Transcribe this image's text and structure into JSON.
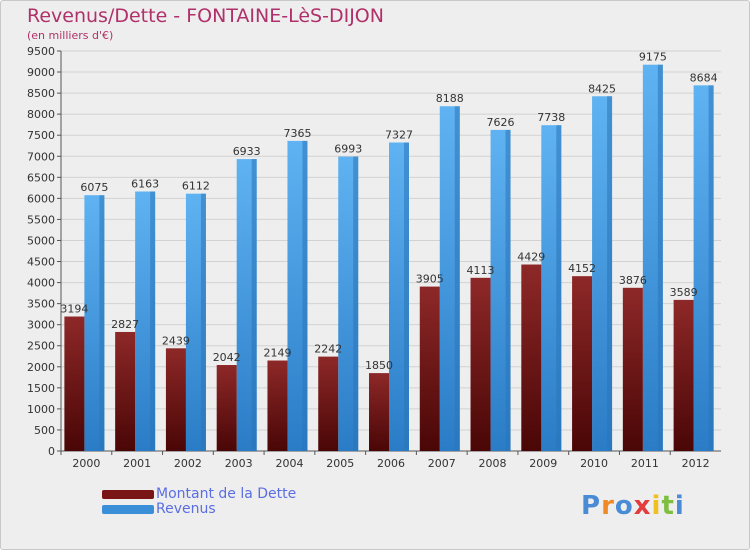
{
  "header": {
    "title": "Revenus/Dette - FONTAINE-LèS-DIJON",
    "subtitle": "(en milliers d'€)"
  },
  "legend": {
    "items": [
      {
        "label": "Montant de la Dette",
        "color": "#7a1515"
      },
      {
        "label": "Revenus",
        "color": "#3a8fd8"
      }
    ]
  },
  "logo": {
    "text": "Proxiti",
    "colors": [
      "#4a8bd6",
      "#f08a24",
      "#4a8bd6",
      "#e23c3c",
      "#f0c020",
      "#7fbf3f",
      "#4a8bd6"
    ]
  },
  "chart_data": {
    "type": "bar",
    "categories": [
      "2000",
      "2001",
      "2002",
      "2003",
      "2004",
      "2005",
      "2006",
      "2007",
      "2008",
      "2009",
      "2010",
      "2011",
      "2012"
    ],
    "series": [
      {
        "name": "Montant de la Dette",
        "color": "#7a1515",
        "values": [
          3194,
          2827,
          2439,
          2042,
          2149,
          2242,
          1850,
          3905,
          4113,
          4429,
          4152,
          3876,
          3589
        ]
      },
      {
        "name": "Revenus",
        "color": "#3a8fd8",
        "values": [
          6075,
          6163,
          6112,
          6933,
          7365,
          6993,
          7327,
          8188,
          7626,
          7738,
          8425,
          9175,
          8684
        ]
      }
    ],
    "yticks": [
      0,
      500,
      1000,
      1500,
      2000,
      2500,
      3000,
      3500,
      4000,
      4500,
      5000,
      5500,
      6000,
      6500,
      7000,
      7500,
      8000,
      8500,
      9000,
      9500
    ],
    "ylim": [
      0,
      9500
    ],
    "grid": true,
    "legend_position": "bottom-left"
  }
}
